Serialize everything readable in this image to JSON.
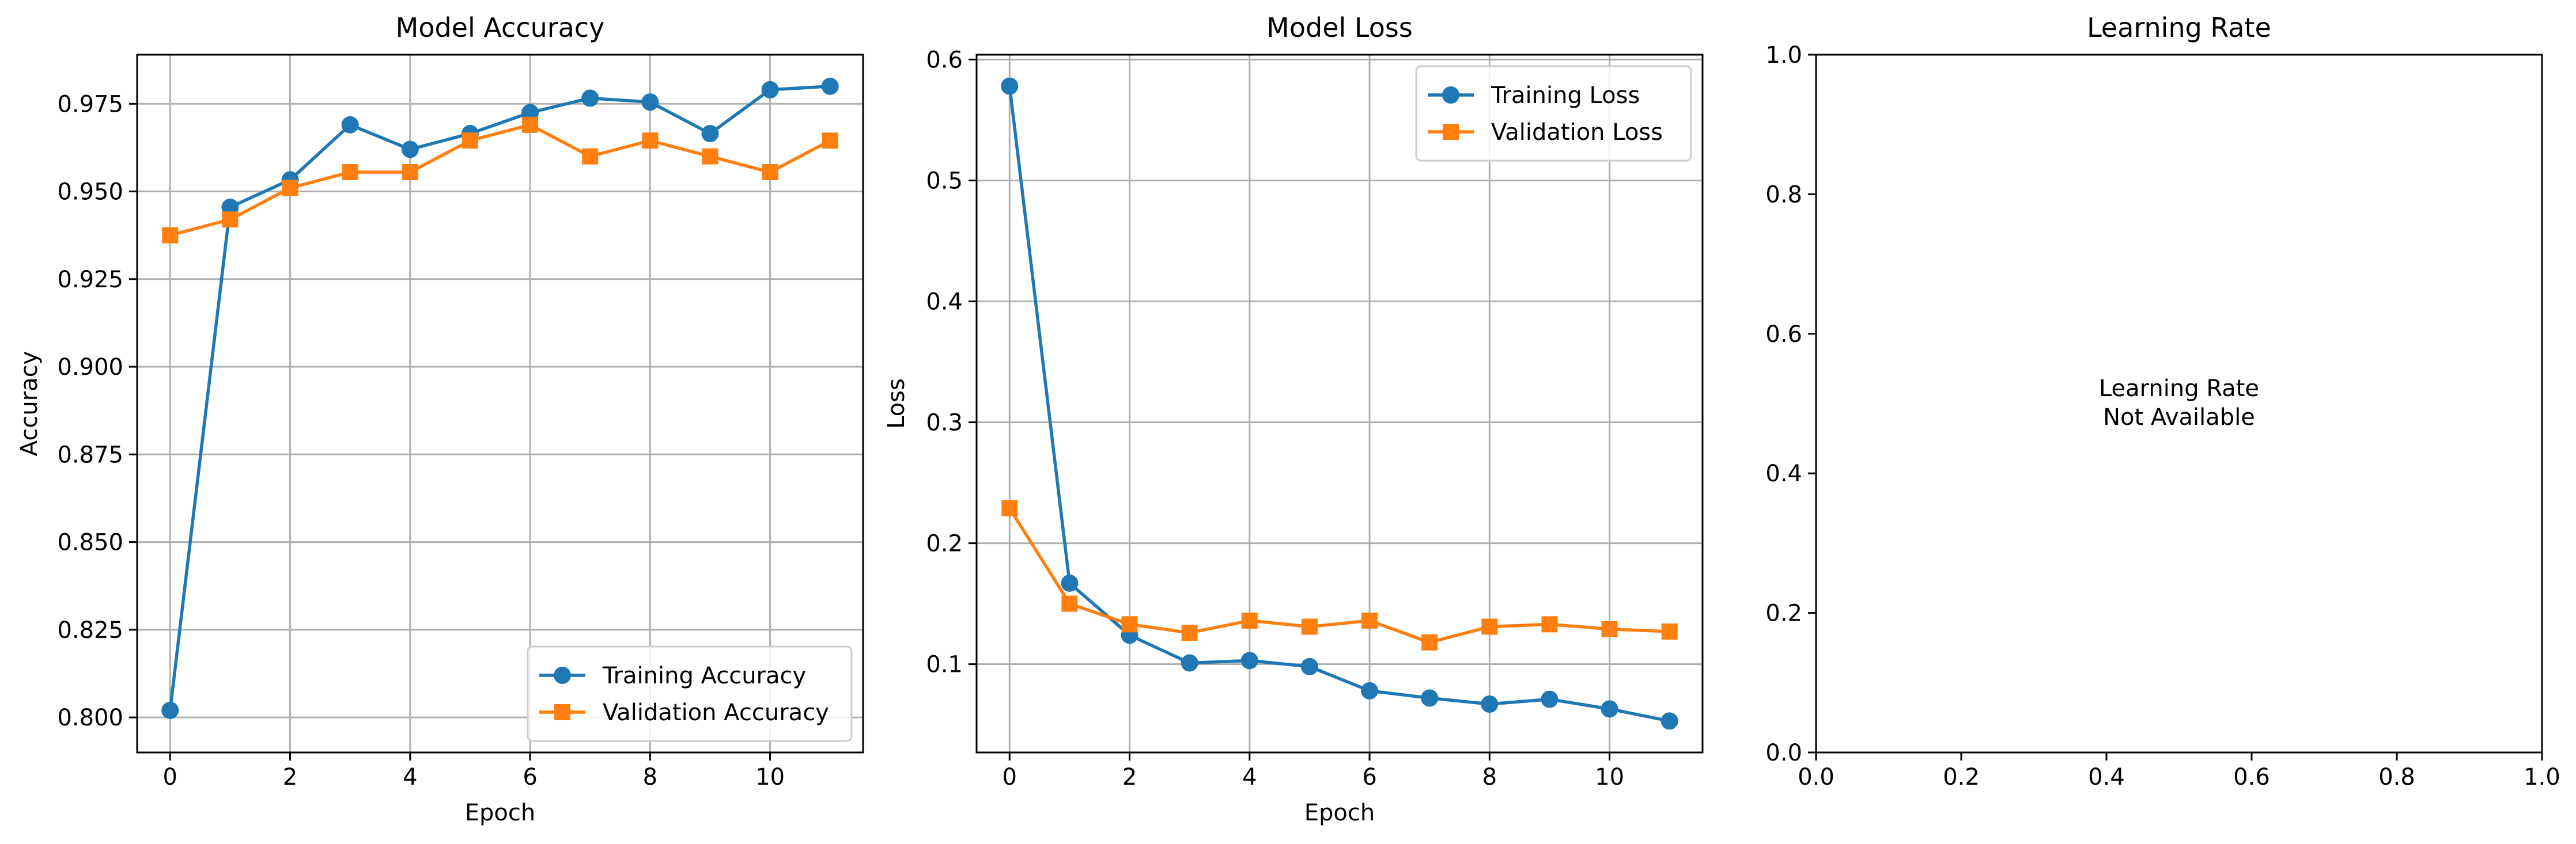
{
  "chart_data": [
    {
      "type": "line",
      "title": "Model Accuracy",
      "xlabel": "Epoch",
      "ylabel": "Accuracy",
      "xlim": [
        -0.55,
        11.55
      ],
      "ylim": [
        0.79,
        0.989
      ],
      "xticks": [
        0,
        2,
        4,
        6,
        8,
        10
      ],
      "yticks": [
        0.8,
        0.825,
        0.85,
        0.875,
        0.9,
        0.925,
        0.95,
        0.975
      ],
      "grid": true,
      "legend_position": "lower-right",
      "x": [
        0,
        1,
        2,
        3,
        4,
        5,
        6,
        7,
        8,
        9,
        10,
        11
      ],
      "series": [
        {
          "name": "Training Accuracy",
          "color": "#1f77b4",
          "marker": "circle",
          "values": [
            0.802,
            0.9455,
            0.9533,
            0.969,
            0.962,
            0.9665,
            0.9725,
            0.9766,
            0.9755,
            0.9665,
            0.979,
            0.98
          ]
        },
        {
          "name": "Validation Accuracy",
          "color": "#ff7f0e",
          "marker": "square",
          "values": [
            0.9375,
            0.942,
            0.951,
            0.9555,
            0.9555,
            0.9645,
            0.969,
            0.96,
            0.9645,
            0.96,
            0.9555,
            0.9645
          ]
        }
      ]
    },
    {
      "type": "line",
      "title": "Model Loss",
      "xlabel": "Epoch",
      "ylabel": "Loss",
      "xlim": [
        -0.55,
        11.55
      ],
      "ylim": [
        0.027,
        0.604
      ],
      "xticks": [
        0,
        2,
        4,
        6,
        8,
        10
      ],
      "yticks": [
        0.1,
        0.2,
        0.3,
        0.4,
        0.5,
        0.6
      ],
      "grid": true,
      "legend_position": "upper-right",
      "x": [
        0,
        1,
        2,
        3,
        4,
        5,
        6,
        7,
        8,
        9,
        10,
        11
      ],
      "series": [
        {
          "name": "Training Loss",
          "color": "#1f77b4",
          "marker": "circle",
          "values": [
            0.578,
            0.167,
            0.124,
            0.101,
            0.103,
            0.098,
            0.078,
            0.072,
            0.067,
            0.071,
            0.063,
            0.053
          ]
        },
        {
          "name": "Validation Loss",
          "color": "#ff7f0e",
          "marker": "square",
          "values": [
            0.229,
            0.15,
            0.133,
            0.126,
            0.136,
            0.131,
            0.136,
            0.118,
            0.131,
            0.133,
            0.129,
            0.127
          ]
        }
      ]
    },
    {
      "type": "line",
      "title": "Learning Rate",
      "xlim": [
        0,
        1
      ],
      "ylim": [
        0,
        1
      ],
      "xticks": [
        0,
        0.2,
        0.4,
        0.6,
        0.8,
        1.0
      ],
      "yticks": [
        0,
        0.2,
        0.4,
        0.6,
        0.8,
        1.0
      ],
      "tick_decimals": 1,
      "grid": false,
      "annotation": [
        "Learning Rate",
        "Not Available"
      ],
      "series": []
    }
  ]
}
